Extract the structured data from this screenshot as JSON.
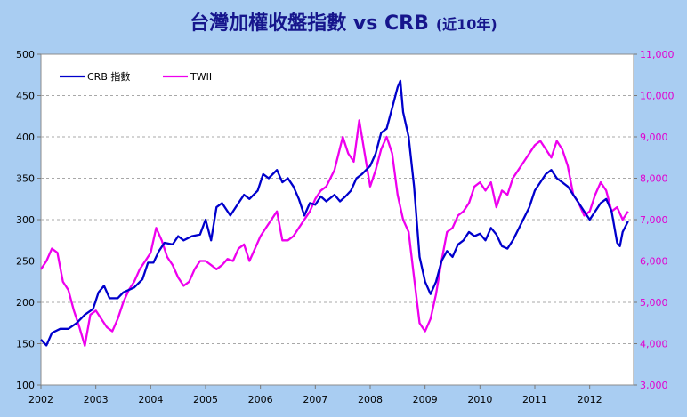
{
  "title": "台灣加權收盤指數 vs CRB",
  "subtitle": "(近10年)",
  "chart_data": {
    "type": "line",
    "title": "台灣加權收盤指數 vs CRB",
    "subtitle": "(近10年)",
    "xlabel": "",
    "ylabel": "",
    "x_ticks": [
      "2002",
      "2003",
      "2004",
      "2005",
      "2006",
      "2007",
      "2008",
      "2009",
      "2010",
      "2011",
      "2012"
    ],
    "xlim": [
      2002.0,
      2012.8
    ],
    "y_left": {
      "lim": [
        100,
        500
      ],
      "ticks": [
        "100",
        "150",
        "200",
        "250",
        "300",
        "350",
        "400",
        "450",
        "500"
      ]
    },
    "y_right": {
      "lim": [
        3000,
        11000
      ],
      "ticks": [
        "3,000",
        "4,000",
        "5,000",
        "6,000",
        "7,000",
        "8,000",
        "9,000",
        "10,000",
        "11,000"
      ]
    },
    "grid": true,
    "legend": "top-left",
    "colors": {
      "crb": "#0000cc",
      "twii": "#ee00ee",
      "right_axis": "#e000d0",
      "background": "#a9cdf2"
    },
    "series": [
      {
        "name": "CRB 指數",
        "axis": "left",
        "points": [
          [
            2002.0,
            155
          ],
          [
            2002.1,
            148
          ],
          [
            2002.2,
            163
          ],
          [
            2002.35,
            168
          ],
          [
            2002.5,
            168
          ],
          [
            2002.65,
            175
          ],
          [
            2002.8,
            185
          ],
          [
            2002.95,
            192
          ],
          [
            2003.05,
            212
          ],
          [
            2003.15,
            220
          ],
          [
            2003.25,
            205
          ],
          [
            2003.4,
            205
          ],
          [
            2003.5,
            212
          ],
          [
            2003.7,
            218
          ],
          [
            2003.85,
            228
          ],
          [
            2003.95,
            248
          ],
          [
            2004.05,
            248
          ],
          [
            2004.15,
            262
          ],
          [
            2004.25,
            272
          ],
          [
            2004.4,
            270
          ],
          [
            2004.5,
            280
          ],
          [
            2004.6,
            275
          ],
          [
            2004.75,
            280
          ],
          [
            2004.9,
            282
          ],
          [
            2005.0,
            300
          ],
          [
            2005.1,
            275
          ],
          [
            2005.2,
            315
          ],
          [
            2005.3,
            320
          ],
          [
            2005.45,
            305
          ],
          [
            2005.6,
            320
          ],
          [
            2005.7,
            330
          ],
          [
            2005.8,
            325
          ],
          [
            2005.95,
            335
          ],
          [
            2006.05,
            355
          ],
          [
            2006.15,
            350
          ],
          [
            2006.3,
            360
          ],
          [
            2006.4,
            345
          ],
          [
            2006.5,
            350
          ],
          [
            2006.6,
            340
          ],
          [
            2006.7,
            325
          ],
          [
            2006.8,
            305
          ],
          [
            2006.9,
            320
          ],
          [
            2007.0,
            318
          ],
          [
            2007.1,
            328
          ],
          [
            2007.2,
            322
          ],
          [
            2007.35,
            330
          ],
          [
            2007.45,
            322
          ],
          [
            2007.55,
            328
          ],
          [
            2007.65,
            335
          ],
          [
            2007.75,
            350
          ],
          [
            2007.85,
            355
          ],
          [
            2008.0,
            365
          ],
          [
            2008.1,
            380
          ],
          [
            2008.2,
            405
          ],
          [
            2008.3,
            410
          ],
          [
            2008.4,
            435
          ],
          [
            2008.5,
            460
          ],
          [
            2008.55,
            468
          ],
          [
            2008.6,
            430
          ],
          [
            2008.7,
            400
          ],
          [
            2008.8,
            340
          ],
          [
            2008.9,
            255
          ],
          [
            2009.0,
            225
          ],
          [
            2009.1,
            210
          ],
          [
            2009.2,
            225
          ],
          [
            2009.3,
            250
          ],
          [
            2009.4,
            262
          ],
          [
            2009.5,
            255
          ],
          [
            2009.6,
            270
          ],
          [
            2009.7,
            275
          ],
          [
            2009.8,
            285
          ],
          [
            2009.9,
            280
          ],
          [
            2010.0,
            283
          ],
          [
            2010.1,
            275
          ],
          [
            2010.2,
            290
          ],
          [
            2010.3,
            282
          ],
          [
            2010.4,
            268
          ],
          [
            2010.5,
            265
          ],
          [
            2010.6,
            275
          ],
          [
            2010.75,
            295
          ],
          [
            2010.9,
            315
          ],
          [
            2011.0,
            335
          ],
          [
            2011.1,
            345
          ],
          [
            2011.2,
            355
          ],
          [
            2011.3,
            360
          ],
          [
            2011.4,
            350
          ],
          [
            2011.5,
            345
          ],
          [
            2011.6,
            340
          ],
          [
            2011.75,
            325
          ],
          [
            2011.9,
            310
          ],
          [
            2012.0,
            300
          ],
          [
            2012.1,
            310
          ],
          [
            2012.2,
            320
          ],
          [
            2012.3,
            325
          ],
          [
            2012.4,
            310
          ],
          [
            2012.5,
            272
          ],
          [
            2012.55,
            268
          ],
          [
            2012.6,
            285
          ],
          [
            2012.7,
            298
          ]
        ]
      },
      {
        "name": "TWII",
        "axis": "right",
        "points": [
          [
            2002.0,
            5800
          ],
          [
            2002.1,
            6000
          ],
          [
            2002.2,
            6300
          ],
          [
            2002.3,
            6200
          ],
          [
            2002.4,
            5500
          ],
          [
            2002.5,
            5300
          ],
          [
            2002.6,
            4800
          ],
          [
            2002.7,
            4400
          ],
          [
            2002.8,
            3950
          ],
          [
            2002.9,
            4700
          ],
          [
            2003.0,
            4800
          ],
          [
            2003.1,
            4600
          ],
          [
            2003.2,
            4400
          ],
          [
            2003.3,
            4300
          ],
          [
            2003.4,
            4600
          ],
          [
            2003.5,
            5000
          ],
          [
            2003.6,
            5300
          ],
          [
            2003.7,
            5500
          ],
          [
            2003.8,
            5800
          ],
          [
            2003.9,
            6000
          ],
          [
            2004.0,
            6200
          ],
          [
            2004.1,
            6800
          ],
          [
            2004.2,
            6500
          ],
          [
            2004.3,
            6100
          ],
          [
            2004.4,
            5900
          ],
          [
            2004.5,
            5600
          ],
          [
            2004.6,
            5400
          ],
          [
            2004.7,
            5500
          ],
          [
            2004.8,
            5800
          ],
          [
            2004.9,
            6000
          ],
          [
            2005.0,
            6000
          ],
          [
            2005.1,
            5900
          ],
          [
            2005.2,
            5800
          ],
          [
            2005.3,
            5900
          ],
          [
            2005.4,
            6050
          ],
          [
            2005.5,
            6000
          ],
          [
            2005.6,
            6300
          ],
          [
            2005.7,
            6400
          ],
          [
            2005.8,
            6000
          ],
          [
            2005.9,
            6300
          ],
          [
            2006.0,
            6600
          ],
          [
            2006.1,
            6800
          ],
          [
            2006.2,
            7000
          ],
          [
            2006.3,
            7200
          ],
          [
            2006.4,
            6500
          ],
          [
            2006.5,
            6500
          ],
          [
            2006.6,
            6600
          ],
          [
            2006.7,
            6800
          ],
          [
            2006.8,
            7000
          ],
          [
            2006.9,
            7200
          ],
          [
            2007.0,
            7500
          ],
          [
            2007.1,
            7700
          ],
          [
            2007.2,
            7800
          ],
          [
            2007.35,
            8200
          ],
          [
            2007.5,
            9000
          ],
          [
            2007.6,
            8600
          ],
          [
            2007.7,
            8400
          ],
          [
            2007.8,
            9400
          ],
          [
            2007.9,
            8600
          ],
          [
            2008.0,
            7800
          ],
          [
            2008.1,
            8200
          ],
          [
            2008.2,
            8700
          ],
          [
            2008.3,
            9000
          ],
          [
            2008.4,
            8600
          ],
          [
            2008.5,
            7600
          ],
          [
            2008.6,
            7000
          ],
          [
            2008.7,
            6700
          ],
          [
            2008.8,
            5600
          ],
          [
            2008.9,
            4500
          ],
          [
            2009.0,
            4300
          ],
          [
            2009.1,
            4600
          ],
          [
            2009.2,
            5200
          ],
          [
            2009.3,
            6000
          ],
          [
            2009.4,
            6700
          ],
          [
            2009.5,
            6800
          ],
          [
            2009.6,
            7100
          ],
          [
            2009.7,
            7200
          ],
          [
            2009.8,
            7400
          ],
          [
            2009.9,
            7800
          ],
          [
            2010.0,
            7900
          ],
          [
            2010.1,
            7700
          ],
          [
            2010.2,
            7900
          ],
          [
            2010.3,
            7300
          ],
          [
            2010.4,
            7700
          ],
          [
            2010.5,
            7600
          ],
          [
            2010.6,
            8000
          ],
          [
            2010.7,
            8200
          ],
          [
            2010.8,
            8400
          ],
          [
            2010.9,
            8600
          ],
          [
            2011.0,
            8800
          ],
          [
            2011.1,
            8900
          ],
          [
            2011.2,
            8700
          ],
          [
            2011.3,
            8500
          ],
          [
            2011.4,
            8900
          ],
          [
            2011.5,
            8700
          ],
          [
            2011.6,
            8300
          ],
          [
            2011.7,
            7600
          ],
          [
            2011.8,
            7400
          ],
          [
            2011.9,
            7100
          ],
          [
            2012.0,
            7200
          ],
          [
            2012.1,
            7600
          ],
          [
            2012.2,
            7900
          ],
          [
            2012.3,
            7700
          ],
          [
            2012.4,
            7200
          ],
          [
            2012.5,
            7300
          ],
          [
            2012.6,
            7000
          ],
          [
            2012.7,
            7200
          ]
        ]
      }
    ]
  }
}
